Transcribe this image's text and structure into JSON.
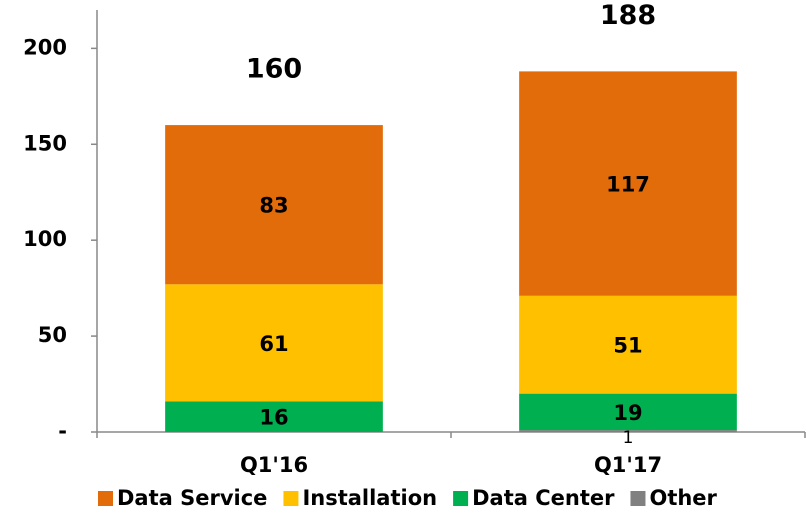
{
  "chart_data": {
    "type": "stacked_bar",
    "categories": [
      "Q1'16",
      "Q1'17"
    ],
    "series": [
      {
        "name": "Data Service",
        "color": "#e36c0a",
        "values": [
          83,
          117
        ]
      },
      {
        "name": "Installation",
        "color": "#ffc000",
        "values": [
          61,
          51
        ]
      },
      {
        "name": "Data Center",
        "color": "#00b050",
        "values": [
          16,
          19
        ]
      },
      {
        "name": "Other",
        "color": "#808080",
        "values": [
          null,
          1
        ]
      }
    ],
    "totals": [
      160,
      188
    ],
    "ylim": [
      0,
      220
    ],
    "yticks": [
      {
        "value": 0,
        "label": "-"
      },
      50,
      100,
      150,
      200
    ],
    "legend": "bottom"
  }
}
